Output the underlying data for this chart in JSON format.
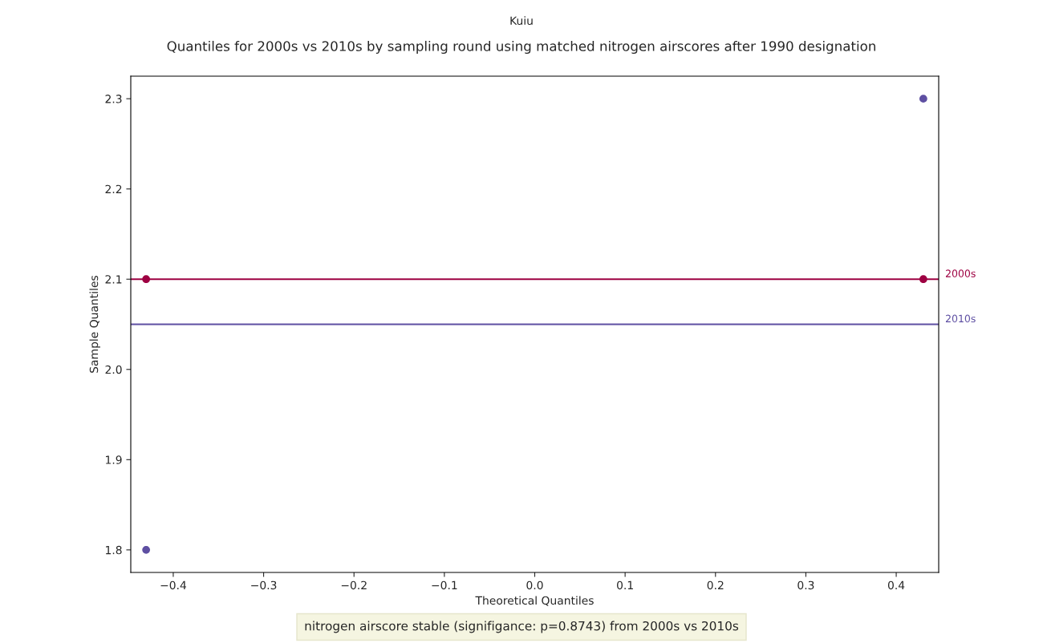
{
  "chart_data": {
    "type": "scatter",
    "title": "Kuiu",
    "subtitle": "Quantiles for 2000s vs 2010s by sampling round using matched nitrogen airscores after 1990 designation",
    "xlabel": "Theoretical Quantiles",
    "x": [
      -0.43,
      0.43
    ],
    "ylabel": "Sample Quantiles",
    "series": [
      {
        "color": "#9e0142",
        "values": [
          2.1,
          2.1
        ]
      },
      {
        "color": "#5e4fa2",
        "values": [
          1.8,
          2.3
        ]
      }
    ],
    "ref_lines": [
      {
        "axis": "y",
        "value": 2.1,
        "label": "2000s",
        "color": "#9e0142"
      },
      {
        "axis": "y",
        "value": 2.05,
        "label": "2010s",
        "color": "#5e4fa2"
      }
    ],
    "xlim": [
      -0.447,
      0.447
    ],
    "ylim": [
      1.775,
      2.325
    ],
    "xticks": [
      {
        "value": -0.4,
        "label": "−0.4"
      },
      {
        "value": -0.3,
        "label": "−0.3"
      },
      {
        "value": -0.2,
        "label": "−0.2"
      },
      {
        "value": -0.1,
        "label": "−0.1"
      },
      {
        "value": 0.0,
        "label": "0.0"
      },
      0.1,
      0.2,
      0.3,
      0.4
    ],
    "yticks": [
      1.8,
      1.9,
      {
        "value": 2.0,
        "label": "2.0"
      },
      2.1,
      2.2,
      2.3
    ],
    "marker": "circle",
    "grid": false,
    "annotations": [
      "nitrogen airscore stable (signifigance: p=0.8743) from 2000s vs 2010s"
    ]
  }
}
